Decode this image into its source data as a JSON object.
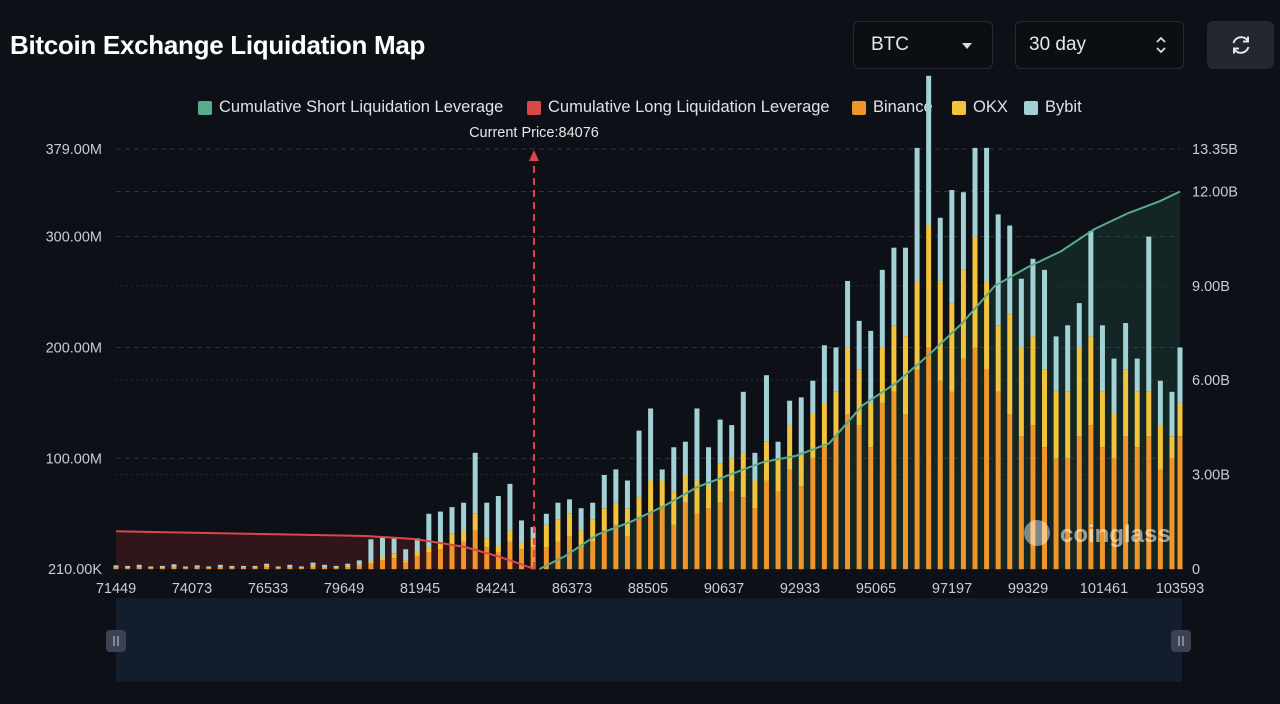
{
  "title": "Bitcoin Exchange Liquidation Map",
  "controls": {
    "coin": "BTC",
    "period": "30 day",
    "refresh_icon": "refresh-icon",
    "coin_caret_icon": "chevron-down-icon",
    "period_icon": "up-down-arrows-icon"
  },
  "legend": [
    {
      "label": "Cumulative Short Liquidation Leverage",
      "color": "#5aab8c"
    },
    {
      "label": "Cumulative Long Liquidation Leverage",
      "color": "#d9474a"
    },
    {
      "label": "Binance",
      "color": "#f0952a"
    },
    {
      "label": "OKX",
      "color": "#f3c33b"
    },
    {
      "label": "Bybit",
      "color": "#a2d2d6"
    }
  ],
  "current_price_label": "Current Price:84076",
  "watermark": "coinglass",
  "chart_data": {
    "type": "bar",
    "x_tick_labels": [
      "71449",
      "74073",
      "76533",
      "79649",
      "81945",
      "84241",
      "86373",
      "88505",
      "90637",
      "92933",
      "95065",
      "97197",
      "99329",
      "101461",
      "103593"
    ],
    "x_range": [
      71449,
      103593
    ],
    "current_price": 84076,
    "left_axis": {
      "ticks": [
        "379.00M",
        "300.00M",
        "200.00M",
        "100.00M",
        "210.00K"
      ],
      "range_millions": [
        0.21,
        379
      ]
    },
    "right_axis": {
      "ticks": [
        "13.35B",
        "12.00B",
        "9.00B",
        "6.00B",
        "3.00B",
        "0"
      ],
      "range_billions": [
        0,
        13.35
      ]
    },
    "stacked_series": [
      "Binance",
      "OKX",
      "Bybit"
    ],
    "bars_millions": [
      [
        71449,
        1.5,
        0.5,
        1.5
      ],
      [
        71800,
        1,
        0.5,
        1.5
      ],
      [
        72150,
        1.5,
        0.5,
        2
      ],
      [
        72500,
        1,
        0.5,
        1
      ],
      [
        72850,
        1,
        0.5,
        1.5
      ],
      [
        73200,
        1.5,
        1,
        2
      ],
      [
        73550,
        1,
        0.5,
        1
      ],
      [
        73900,
        1.5,
        0.5,
        1.5
      ],
      [
        74250,
        1,
        0.5,
        1
      ],
      [
        74600,
        1.5,
        0.5,
        2
      ],
      [
        74950,
        1,
        0.5,
        1.5
      ],
      [
        75300,
        1.5,
        0.5,
        1
      ],
      [
        75650,
        1,
        0.5,
        1.5
      ],
      [
        76000,
        2,
        1,
        2
      ],
      [
        76350,
        1,
        0.5,
        1
      ],
      [
        76700,
        1.5,
        0.5,
        2
      ],
      [
        77050,
        1,
        0.5,
        1
      ],
      [
        77400,
        2,
        1,
        3
      ],
      [
        77750,
        1.5,
        0.5,
        2
      ],
      [
        78100,
        1,
        0.5,
        1.5
      ],
      [
        78450,
        2,
        1,
        2
      ],
      [
        78800,
        3,
        1,
        4
      ],
      [
        79150,
        5,
        2,
        20
      ],
      [
        79500,
        8,
        3,
        18
      ],
      [
        79850,
        10,
        4,
        15
      ],
      [
        80200,
        6,
        2,
        10
      ],
      [
        80550,
        12,
        4,
        12
      ],
      [
        80900,
        15,
        5,
        30
      ],
      [
        81250,
        18,
        6,
        28
      ],
      [
        81600,
        22,
        10,
        24
      ],
      [
        81950,
        25,
        10,
        25
      ],
      [
        82300,
        35,
        15,
        55
      ],
      [
        82650,
        20,
        8,
        32
      ],
      [
        83000,
        15,
        6,
        45
      ],
      [
        83350,
        25,
        10,
        42
      ],
      [
        83700,
        18,
        6,
        20
      ],
      [
        84050,
        20,
        8,
        10
      ],
      [
        84450,
        20,
        20,
        10
      ],
      [
        84800,
        25,
        20,
        15
      ],
      [
        85150,
        30,
        20,
        13
      ],
      [
        85500,
        20,
        15,
        20
      ],
      [
        85850,
        25,
        20,
        15
      ],
      [
        86200,
        35,
        20,
        30
      ],
      [
        86550,
        40,
        20,
        30
      ],
      [
        86900,
        30,
        25,
        25
      ],
      [
        87250,
        45,
        20,
        60
      ],
      [
        87600,
        50,
        30,
        65
      ],
      [
        87950,
        55,
        25,
        10
      ],
      [
        88300,
        40,
        30,
        40
      ],
      [
        88650,
        60,
        25,
        30
      ],
      [
        89000,
        50,
        30,
        65
      ],
      [
        89350,
        55,
        20,
        35
      ],
      [
        89700,
        60,
        35,
        40
      ],
      [
        90050,
        70,
        30,
        30
      ],
      [
        90400,
        65,
        40,
        55
      ],
      [
        90750,
        55,
        25,
        25
      ],
      [
        91100,
        80,
        35,
        60
      ],
      [
        91450,
        70,
        30,
        15
      ],
      [
        91800,
        90,
        40,
        22
      ],
      [
        92150,
        75,
        30,
        50
      ],
      [
        92500,
        100,
        40,
        30
      ],
      [
        92850,
        110,
        40,
        52
      ],
      [
        93200,
        120,
        40,
        40
      ],
      [
        93550,
        140,
        60,
        60
      ],
      [
        93900,
        130,
        50,
        44
      ],
      [
        94250,
        110,
        40,
        65
      ],
      [
        94600,
        150,
        50,
        70
      ],
      [
        94950,
        160,
        60,
        70
      ],
      [
        95300,
        140,
        70,
        80
      ],
      [
        95650,
        180,
        80,
        120
      ],
      [
        96000,
        200,
        110,
        135
      ],
      [
        96350,
        170,
        90,
        57
      ],
      [
        96700,
        160,
        80,
        102
      ],
      [
        97050,
        190,
        80,
        70
      ],
      [
        97400,
        200,
        100,
        80
      ],
      [
        97750,
        180,
        80,
        120
      ],
      [
        98100,
        160,
        60,
        100
      ],
      [
        98450,
        140,
        90,
        80
      ],
      [
        98800,
        120,
        80,
        62
      ],
      [
        99150,
        130,
        80,
        70
      ],
      [
        99500,
        110,
        70,
        90
      ],
      [
        99850,
        100,
        60,
        50
      ],
      [
        100200,
        100,
        60,
        60
      ],
      [
        100550,
        120,
        80,
        40
      ],
      [
        100900,
        130,
        80,
        95
      ],
      [
        101250,
        110,
        50,
        60
      ],
      [
        101600,
        100,
        40,
        50
      ],
      [
        101950,
        120,
        60,
        42
      ],
      [
        102300,
        110,
        50,
        30
      ],
      [
        102650,
        120,
        40,
        140
      ],
      [
        103000,
        90,
        40,
        40
      ],
      [
        103350,
        100,
        20,
        40
      ],
      [
        103593,
        120,
        30,
        50
      ]
    ],
    "cumulative_short_billions": [
      [
        84241,
        0
      ],
      [
        85000,
        0.4
      ],
      [
        86000,
        1.1
      ],
      [
        87000,
        1.5
      ],
      [
        88000,
        2.0
      ],
      [
        89000,
        2.6
      ],
      [
        90000,
        3.0
      ],
      [
        91000,
        3.4
      ],
      [
        92000,
        3.6
      ],
      [
        93000,
        4.0
      ],
      [
        94000,
        5.2
      ],
      [
        95000,
        5.9
      ],
      [
        96000,
        6.8
      ],
      [
        97000,
        7.8
      ],
      [
        98000,
        9.0
      ],
      [
        99000,
        9.6
      ],
      [
        100000,
        10.1
      ],
      [
        101000,
        10.8
      ],
      [
        102000,
        11.3
      ],
      [
        103000,
        11.7
      ],
      [
        103593,
        12.0
      ]
    ],
    "cumulative_long_billions": [
      [
        71449,
        1.2
      ],
      [
        74000,
        1.15
      ],
      [
        76500,
        1.1
      ],
      [
        79000,
        1.05
      ],
      [
        80500,
        0.95
      ],
      [
        82000,
        0.7
      ],
      [
        83000,
        0.4
      ],
      [
        83700,
        0.15
      ],
      [
        84076,
        0
      ]
    ]
  }
}
